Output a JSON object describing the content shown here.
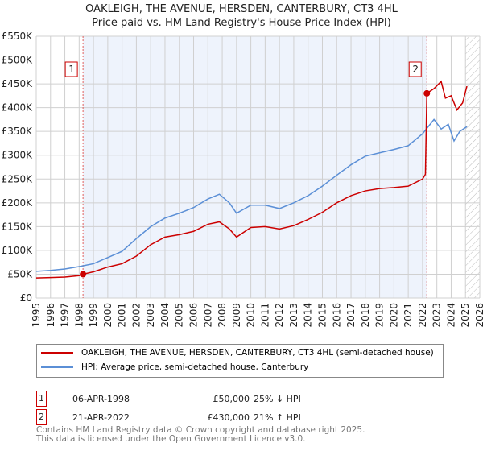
{
  "chart_data": {
    "type": "line",
    "title": "OAKLEIGH, THE AVENUE, HERSDEN, CANTERBURY, CT3 4HL",
    "subtitle": "Price paid vs. HM Land Registry's House Price Index (HPI)",
    "xlim": [
      1995,
      2026
    ],
    "ylim": [
      0,
      550000
    ],
    "x_ticks": [
      "1995",
      "1996",
      "1997",
      "1998",
      "1999",
      "2000",
      "2001",
      "2002",
      "2003",
      "2004",
      "2005",
      "2006",
      "2007",
      "2008",
      "2009",
      "2010",
      "2011",
      "2012",
      "2013",
      "2014",
      "2015",
      "2016",
      "2017",
      "2018",
      "2019",
      "2020",
      "2021",
      "2022",
      "2023",
      "2024",
      "2025",
      "2026"
    ],
    "y_ticks": [
      {
        "v": 0,
        "l": "£0"
      },
      {
        "v": 50000,
        "l": "£50K"
      },
      {
        "v": 100000,
        "l": "£100K"
      },
      {
        "v": 150000,
        "l": "£150K"
      },
      {
        "v": 200000,
        "l": "£200K"
      },
      {
        "v": 250000,
        "l": "£250K"
      },
      {
        "v": 300000,
        "l": "£300K"
      },
      {
        "v": 350000,
        "l": "£350K"
      },
      {
        "v": 400000,
        "l": "£400K"
      },
      {
        "v": 450000,
        "l": "£450K"
      },
      {
        "v": 500000,
        "l": "£500K"
      },
      {
        "v": 550000,
        "l": "£550K"
      }
    ],
    "shaded_range": [
      1998.27,
      2022.3
    ],
    "hatched_from": 2025.0,
    "series": [
      {
        "name": "OAKLEIGH, THE AVENUE, HERSDEN, CANTERBURY, CT3 4HL (semi-detached house)",
        "color": "#cc0000",
        "x": [
          1995,
          1996,
          1997,
          1998,
          1998.27,
          1999,
          2000,
          2001,
          2002,
          2003,
          2004,
          2005,
          2006,
          2007,
          2007.8,
          2008.5,
          2009,
          2010,
          2011,
          2012,
          2013,
          2014,
          2015,
          2016,
          2017,
          2018,
          2019,
          2020,
          2021,
          2022.0,
          2022.2,
          2022.3,
          2022.8,
          2023.3,
          2023.6,
          2024,
          2024.4,
          2024.8,
          2025.1
        ],
        "y": [
          42000,
          43000,
          44000,
          47000,
          50000,
          55000,
          65000,
          72000,
          88000,
          112000,
          128000,
          133000,
          140000,
          155000,
          160000,
          145000,
          128000,
          148000,
          150000,
          145000,
          152000,
          165000,
          180000,
          200000,
          215000,
          225000,
          230000,
          232000,
          235000,
          250000,
          260000,
          430000,
          440000,
          455000,
          420000,
          425000,
          395000,
          410000,
          445000
        ]
      },
      {
        "name": "HPI: Average price, semi-detached house, Canterbury",
        "color": "#5b8fd6",
        "x": [
          1995,
          1996,
          1997,
          1998,
          1999,
          2000,
          2001,
          2002,
          2003,
          2004,
          2005,
          2006,
          2007,
          2007.8,
          2008.5,
          2009,
          2010,
          2011,
          2012,
          2013,
          2014,
          2015,
          2016,
          2017,
          2018,
          2019,
          2020,
          2021,
          2022,
          2022.8,
          2023.3,
          2023.8,
          2024.2,
          2024.6,
          2025.1
        ],
        "y": [
          56000,
          58000,
          61000,
          66000,
          72000,
          85000,
          98000,
          125000,
          150000,
          168000,
          178000,
          190000,
          208000,
          218000,
          200000,
          178000,
          195000,
          195000,
          188000,
          200000,
          215000,
          235000,
          258000,
          280000,
          298000,
          305000,
          312000,
          320000,
          345000,
          375000,
          355000,
          365000,
          330000,
          350000,
          360000
        ]
      }
    ],
    "annotations": [
      {
        "label": "1",
        "x": 1998.27,
        "y": 50000
      },
      {
        "label": "2",
        "x": 2022.3,
        "y": 430000
      }
    ]
  },
  "legend": {
    "red": "OAKLEIGH, THE AVENUE, HERSDEN, CANTERBURY, CT3 4HL (semi-detached house)",
    "blue": "HPI: Average price, semi-detached house, Canterbury"
  },
  "sales": [
    {
      "num": "1",
      "date": "06-APR-1998",
      "price": "£50,000",
      "hpi": "25% ↓ HPI"
    },
    {
      "num": "2",
      "date": "21-APR-2022",
      "price": "£430,000",
      "hpi": "21% ↑ HPI"
    }
  ],
  "footer": {
    "line1": "Contains HM Land Registry data © Crown copyright and database right 2025.",
    "line2": "This data is licensed under the Open Government Licence v3.0."
  }
}
